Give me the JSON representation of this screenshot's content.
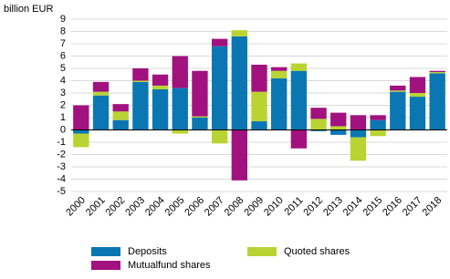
{
  "chart_data": {
    "type": "stacked_bar",
    "y_label": "billion EUR",
    "categories": [
      "2000",
      "2001",
      "2002",
      "2003",
      "2004",
      "2005",
      "2006",
      "2007",
      "2008",
      "2009",
      "2010",
      "2011",
      "2012",
      "2013",
      "2014",
      "2015",
      "2016",
      "2017",
      "2018"
    ],
    "series": [
      {
        "name": "Deposits",
        "color": "#0a77b3",
        "values": [
          -0.3,
          2.8,
          0.8,
          3.9,
          3.3,
          3.4,
          1.0,
          6.8,
          7.6,
          0.7,
          4.2,
          4.8,
          -0.1,
          -0.4,
          -0.6,
          0.8,
          3.1,
          2.7,
          4.6
        ]
      },
      {
        "name": "Quoted shares",
        "color": "#b9d432",
        "values": [
          -1.1,
          0.3,
          0.7,
          0.1,
          0.3,
          -0.3,
          0.1,
          -1.1,
          0.5,
          2.4,
          0.6,
          0.6,
          0.9,
          0.3,
          -1.9,
          -0.5,
          0.1,
          0.3,
          0.1
        ]
      },
      {
        "name": "Mutualfund shares",
        "color": "#a1127f",
        "values": [
          2.0,
          0.8,
          0.6,
          1.0,
          0.9,
          2.6,
          3.7,
          0.6,
          -4.1,
          2.2,
          0.3,
          -1.5,
          0.9,
          1.1,
          1.2,
          0.4,
          0.4,
          1.3,
          0.1
        ]
      }
    ],
    "ylim": [
      -5,
      9
    ],
    "yticks": [
      -5,
      -4,
      -3,
      -2,
      -1,
      0,
      1,
      2,
      3,
      4,
      5,
      6,
      7,
      8,
      9
    ],
    "grid": true
  }
}
